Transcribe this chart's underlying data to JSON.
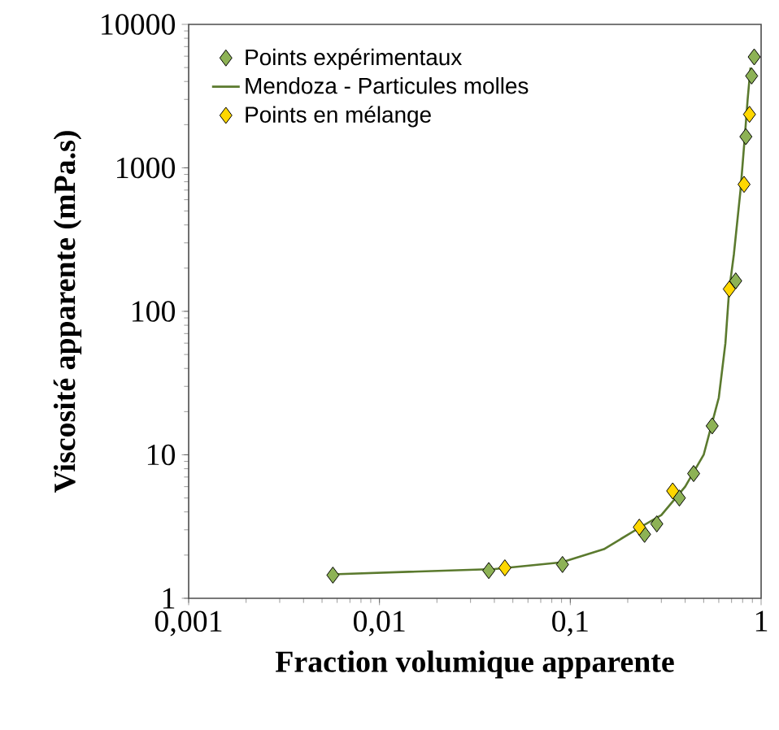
{
  "chart_data": {
    "type": "scatter",
    "xlabel": "Fraction volumique apparente",
    "ylabel": "Viscosité apparente (mPa.s)",
    "log": "xy",
    "marker": "diamond",
    "legend": "top left",
    "grid": false,
    "xlim": [
      0.001,
      1
    ],
    "ylim": [
      1,
      10000
    ],
    "xticks": [
      {
        "value": 0.001,
        "label": "0,001"
      },
      {
        "value": 0.01,
        "label": "0,01"
      },
      {
        "value": 0.1,
        "label": "0,1"
      },
      1
    ],
    "yticks": [
      1,
      10,
      100,
      1000,
      10000
    ],
    "series": [
      {
        "name": "Points expérimentaux",
        "color": "#8db255",
        "x": [
          0.0057,
          0.0374,
          0.044,
          0.091,
          0.245,
          0.284,
          0.373,
          0.443,
          0.554,
          0.736,
          0.832,
          0.892,
          0.92
        ],
        "values": [
          1.45,
          1.56,
          null,
          1.72,
          2.79,
          3.3,
          5.0,
          7.4,
          15.9,
          163,
          1650,
          4370,
          5930
        ]
      },
      {
        "name": "Mendoza - Particules molles",
        "type": "line",
        "marker": "none",
        "color": "#5b7a2e",
        "x": [
          0.0057,
          0.04,
          0.09,
          0.15,
          0.23,
          0.3,
          0.4,
          0.5,
          0.6,
          0.65,
          0.68,
          0.72,
          0.78,
          0.82,
          0.85,
          0.88
        ],
        "values": [
          1.47,
          1.6,
          1.78,
          2.2,
          3.1,
          3.8,
          6,
          10,
          25,
          60,
          140,
          250,
          700,
          1600,
          3000,
          5000
        ]
      },
      {
        "name": "Points en mélange",
        "color": "#ffd700",
        "x": [
          0.0454,
          0.23,
          0.344,
          0.681,
          0.814,
          0.869
        ],
        "values": [
          1.63,
          3.13,
          5.6,
          143,
          767,
          2360
        ]
      }
    ]
  }
}
